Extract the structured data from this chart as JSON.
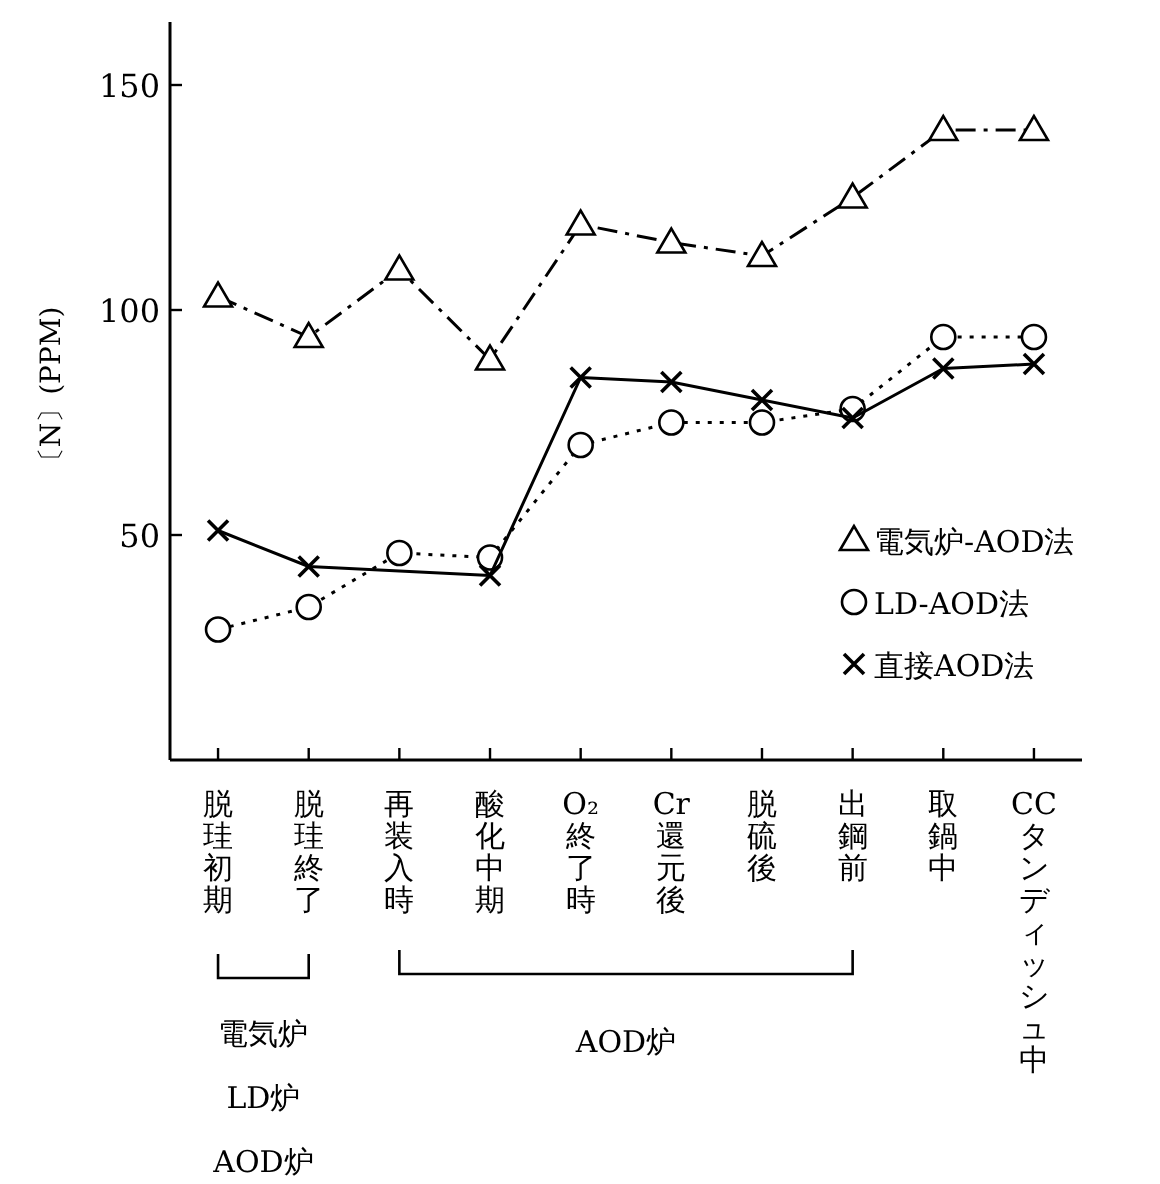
{
  "chart_data": {
    "type": "line",
    "ylabel": "〔N〕(PPM)",
    "categories": [
      "脱珪初期",
      "脱珪終了",
      "再装入時",
      "酸化中期",
      "O₂終了時",
      "Cr還元後",
      "脱硫後",
      "出鋼前",
      "取鍋中",
      "CCタンディッシュ中"
    ],
    "series": [
      {
        "name": "電気炉-AOD法",
        "color": "#000000",
        "marker": "triangle",
        "line_style": "dashdot",
        "values": [
          103,
          94,
          109,
          89,
          119,
          115,
          112,
          125,
          140,
          140
        ]
      },
      {
        "name": "LD-AOD法",
        "color": "#000000",
        "marker": "circle",
        "line_style": "dotted",
        "values": [
          29,
          34,
          46,
          45,
          70,
          75,
          75,
          78,
          94,
          94
        ]
      },
      {
        "name": "直接AOD法",
        "color": "#000000",
        "marker": "cross",
        "line_style": "solid",
        "values": [
          51,
          43,
          null,
          41,
          85,
          84,
          80,
          76,
          87,
          88
        ]
      }
    ],
    "ylim": [
      0,
      164
    ],
    "yticks": [
      50,
      100,
      150
    ],
    "grid": false,
    "legend": "right",
    "annotations": [
      "電気炉",
      "LD炉",
      "AOD炉",
      "AOD炉"
    ]
  }
}
